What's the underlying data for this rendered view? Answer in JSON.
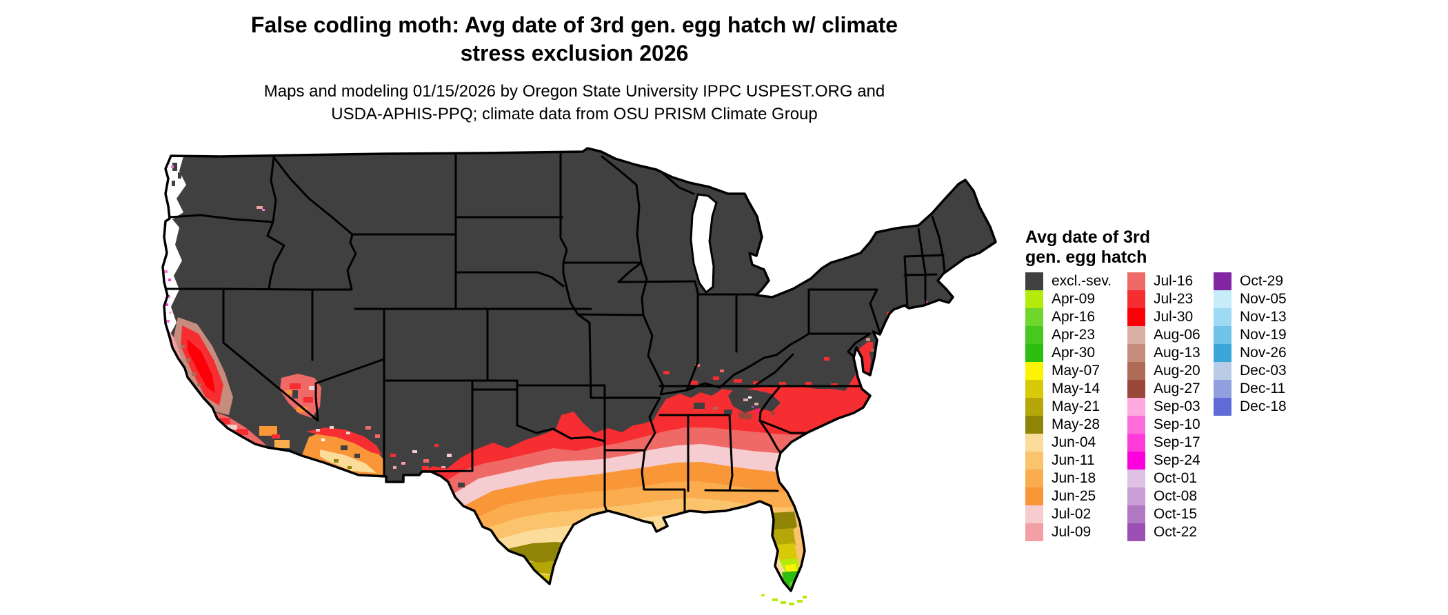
{
  "title": {
    "line1": "False codling moth: Avg date of 3rd gen. egg hatch w/ climate",
    "line2": "stress exclusion 2026"
  },
  "subtitle": {
    "line1": "Maps and modeling 01/15/2026 by Oregon State University IPPC USPEST.ORG and",
    "line2": "USDA-APHIS-PPQ; climate data from OSU PRISM Climate Group"
  },
  "legend": {
    "title_line1": "Avg date of 3rd",
    "title_line2": "gen. egg hatch",
    "columns": [
      [
        {
          "label": "excl.-sev.",
          "color": "#404040"
        },
        {
          "label": "Apr-09",
          "color": "#B4EB0A"
        },
        {
          "label": "Apr-16",
          "color": "#6FD62B"
        },
        {
          "label": "Apr-23",
          "color": "#46C81E"
        },
        {
          "label": "Apr-30",
          "color": "#2DBE12"
        },
        {
          "label": "May-07",
          "color": "#FDF403"
        },
        {
          "label": "May-14",
          "color": "#D8CA08"
        },
        {
          "label": "May-21",
          "color": "#B4A707"
        },
        {
          "label": "May-28",
          "color": "#8F8406"
        },
        {
          "label": "Jun-04",
          "color": "#FBDC9B"
        },
        {
          "label": "Jun-11",
          "color": "#FBC46C"
        },
        {
          "label": "Jun-18",
          "color": "#FAAC4F"
        },
        {
          "label": "Jun-25",
          "color": "#F99638"
        },
        {
          "label": "Jul-02",
          "color": "#F5CCD0"
        },
        {
          "label": "Jul-09",
          "color": "#F29FA5"
        }
      ],
      [
        {
          "label": "Jul-16",
          "color": "#EF6A66"
        },
        {
          "label": "Jul-23",
          "color": "#F62E31"
        },
        {
          "label": "Jul-30",
          "color": "#FB0007"
        },
        {
          "label": "Aug-06",
          "color": "#D9AFA4"
        },
        {
          "label": "Aug-13",
          "color": "#C68D7E"
        },
        {
          "label": "Aug-20",
          "color": "#AF6A58"
        },
        {
          "label": "Aug-27",
          "color": "#98473A"
        },
        {
          "label": "Sep-03",
          "color": "#FFA9E0"
        },
        {
          "label": "Sep-10",
          "color": "#FF6FDC"
        },
        {
          "label": "Sep-17",
          "color": "#FF3BDA"
        },
        {
          "label": "Sep-24",
          "color": "#FE00E0"
        },
        {
          "label": "Oct-01",
          "color": "#DEC2E6"
        },
        {
          "label": "Oct-08",
          "color": "#C99FD6"
        },
        {
          "label": "Oct-15",
          "color": "#B278C4"
        },
        {
          "label": "Oct-22",
          "color": "#9C50B4"
        }
      ],
      [
        {
          "label": "Oct-29",
          "color": "#8326A3"
        },
        {
          "label": "Nov-05",
          "color": "#C7ECFA"
        },
        {
          "label": "Nov-13",
          "color": "#9EDAF3"
        },
        {
          "label": "Nov-19",
          "color": "#6FC3E8"
        },
        {
          "label": "Nov-26",
          "color": "#3BA7D9"
        },
        {
          "label": "Dec-03",
          "color": "#B9CBE7"
        },
        {
          "label": "Dec-11",
          "color": "#8F9FDF"
        },
        {
          "label": "Dec-18",
          "color": "#5F6CD8"
        }
      ]
    ]
  },
  "map": {
    "background": "#FFFFFF",
    "state_border_color": "#000000",
    "palette": {
      "excl": "#404040",
      "apr09": "#B4EB0A",
      "apr16": "#6FD62B",
      "apr23": "#46C81E",
      "apr30": "#2DBE12",
      "may07": "#FDF403",
      "may14": "#D8CA08",
      "may21": "#B4A707",
      "may28": "#8F8406",
      "jun04": "#FBDC9B",
      "jun11": "#FBC46C",
      "jun18": "#FAAC4F",
      "jun25": "#F99638",
      "jul02": "#F5CCD0",
      "jul09": "#F29FA5",
      "jul16": "#EF6A66",
      "jul23": "#F62E31",
      "jul30": "#FB0007",
      "aug06": "#D9AFA4",
      "aug13": "#C68D7E",
      "aug20": "#AF6A58",
      "aug27": "#98473A",
      "sep03": "#FFA9E0",
      "sep10": "#FF6FDC",
      "sep17": "#FF3BDA",
      "sep24": "#FE00E0",
      "oct01": "#DEC2E6",
      "oct08": "#C99FD6",
      "oct15": "#B278C4",
      "oct22": "#9C50B4",
      "oct29": "#8326A3",
      "nov05": "#C7ECFA",
      "nov13": "#9EDAF3",
      "nov19": "#6FC3E8",
      "nov26": "#3BA7D9",
      "dec03": "#B9CBE7",
      "dec11": "#8F9FDF",
      "dec18": "#5F6CD8"
    }
  }
}
